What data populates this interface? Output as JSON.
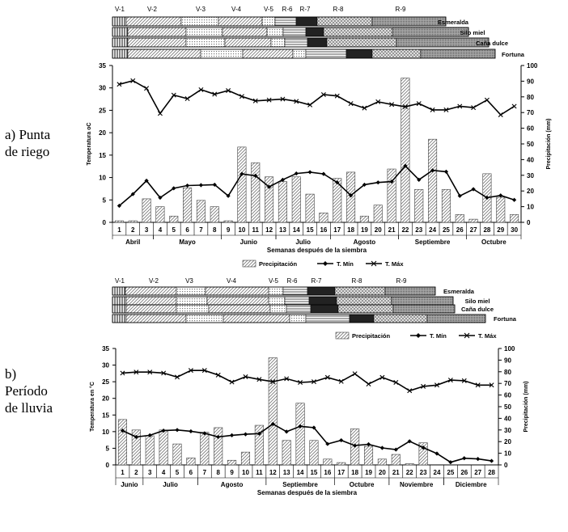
{
  "panel_a_label": "a) Punta\nde riego",
  "panel_b_label": "b)\nPeríodo\nde lluvia",
  "series_names": {
    "precip": "Precipitación",
    "tmin": "T. Mín",
    "tmax": "T. Máx"
  },
  "axis_labels": {
    "y_left_a": "Temperatura oC",
    "y_left_b": "Temperatura en °C",
    "y_right": "Precipitación (mm)",
    "x": "Semanas después de la siembra"
  },
  "stage_bars": [
    {
      "stage_labels": [
        "V-1",
        "V-2",
        "V-3",
        "V-4",
        "V-5",
        "R-6",
        "R-7",
        "R-8",
        "R-9"
      ],
      "varieties": [
        "Esmeralda",
        "Silo miel",
        "Caña dulce",
        "Fortuna"
      ]
    },
    {
      "stage_labels": [
        "V-1",
        "V-2",
        "V3",
        "V-4",
        "V-5",
        "R-6",
        "R-7",
        "R-8",
        "R-9"
      ],
      "varieties": [
        "Esmeralda",
        "Silo miel",
        "Caña dulce",
        "Fortuna"
      ]
    }
  ],
  "chart_data": [
    {
      "type": "bar+line",
      "panel": "a",
      "weeks": [
        1,
        2,
        3,
        4,
        5,
        6,
        7,
        8,
        9,
        10,
        11,
        12,
        13,
        14,
        15,
        16,
        17,
        18,
        19,
        20,
        21,
        22,
        23,
        24,
        25,
        26,
        27,
        28,
        29,
        30
      ],
      "months": [
        {
          "name": "Abril",
          "from": 1,
          "to": 3
        },
        {
          "name": "Mayo",
          "from": 4,
          "to": 8
        },
        {
          "name": "Junio",
          "from": 9,
          "to": 12
        },
        {
          "name": "Julio",
          "from": 13,
          "to": 16
        },
        {
          "name": "Agosto",
          "from": 17,
          "to": 21
        },
        {
          "name": "Septiembre",
          "from": 22,
          "to": 26
        },
        {
          "name": "Octubre",
          "from": 27,
          "to": 30
        }
      ],
      "y_left": {
        "label": "Temperatura oC",
        "range": [
          0,
          35
        ],
        "ticks": [
          0,
          5,
          10,
          15,
          20,
          25,
          30,
          35
        ]
      },
      "y_right": {
        "label": "Precipitación (mm)",
        "range": [
          0,
          100
        ],
        "ticks": [
          0,
          10,
          20,
          30,
          40,
          50,
          60,
          70,
          80,
          90,
          100
        ]
      },
      "xlabel": "Semanas después de la siembra",
      "series": [
        {
          "name": "Precipitación",
          "axis": "right",
          "kind": "bar",
          "values": [
            1,
            1,
            15,
            10,
            4,
            22,
            14,
            10,
            1,
            48,
            38,
            29,
            26,
            29,
            18,
            6,
            28,
            32,
            4,
            11,
            34,
            92,
            21,
            53,
            21,
            5,
            2,
            31,
            16,
            5
          ]
        },
        {
          "name": "T. Mín",
          "axis": "left",
          "kind": "line",
          "marker": "diamond",
          "values": [
            3.7,
            6.3,
            9.3,
            5.5,
            7.6,
            8.2,
            8.3,
            8.4,
            5.9,
            10.8,
            10.4,
            7.9,
            9.5,
            10.9,
            11.2,
            10.8,
            8.9,
            6.0,
            8.4,
            8.9,
            9.1,
            12.6,
            9.5,
            11.6,
            11.3,
            5.9,
            7.4,
            5.5,
            6.0,
            5.0
          ]
        },
        {
          "name": "T. Máx",
          "axis": "left",
          "kind": "line",
          "marker": "x",
          "values": [
            30.8,
            31.6,
            29.9,
            24.3,
            28.4,
            27.6,
            29.6,
            28.6,
            29.4,
            28.1,
            27.1,
            27.3,
            27.5,
            27.0,
            26.2,
            28.5,
            28.2,
            26.5,
            25.5,
            26.9,
            26.3,
            25.8,
            26.5,
            25.1,
            25.1,
            25.9,
            25.6,
            27.3,
            24.0,
            25.9
          ]
        }
      ]
    },
    {
      "type": "bar+line",
      "panel": "b",
      "weeks": [
        1,
        2,
        3,
        4,
        5,
        6,
        7,
        8,
        9,
        10,
        11,
        12,
        13,
        14,
        15,
        16,
        17,
        18,
        19,
        20,
        21,
        22,
        23,
        24,
        25,
        26,
        27,
        28
      ],
      "months": [
        {
          "name": "Junio",
          "from": 1,
          "to": 2
        },
        {
          "name": "Julio",
          "from": 3,
          "to": 6
        },
        {
          "name": "Agosto",
          "from": 7,
          "to": 11
        },
        {
          "name": "Septiembre",
          "from": 12,
          "to": 16
        },
        {
          "name": "Octubre",
          "from": 17,
          "to": 20
        },
        {
          "name": "Noviembre",
          "from": 21,
          "to": 24
        },
        {
          "name": "Diciembre",
          "from": 25,
          "to": 28
        }
      ],
      "y_left": {
        "label": "Temperatura en °C",
        "range": [
          0,
          35
        ],
        "ticks": [
          0,
          5,
          10,
          15,
          20,
          25,
          30,
          35
        ]
      },
      "y_right": {
        "label": "Precipitación (mm)",
        "range": [
          0,
          100
        ],
        "ticks": [
          0,
          10,
          20,
          30,
          40,
          50,
          60,
          70,
          80,
          90,
          100
        ]
      },
      "xlabel": "Semanas después de la siembra",
      "series": [
        {
          "name": "Precipitación",
          "axis": "right",
          "kind": "bar",
          "values": [
            39,
            30,
            25,
            30,
            18,
            6,
            28,
            32,
            4,
            11,
            34,
            92,
            21,
            53,
            21,
            5,
            2,
            31,
            16,
            5,
            9,
            1,
            19,
            0,
            0,
            0,
            0,
            0
          ]
        },
        {
          "name": "T. Mín",
          "axis": "left",
          "kind": "line",
          "marker": "diamond",
          "values": [
            10.3,
            8.4,
            8.9,
            10.3,
            10.5,
            10.1,
            9.5,
            8.4,
            8.9,
            9.2,
            9.4,
            12.3,
            10.0,
            11.6,
            11.2,
            6.3,
            7.4,
            5.8,
            6.2,
            5.1,
            4.6,
            7.1,
            5.2,
            3.4,
            0.8,
            2.0,
            1.8,
            1.2
          ]
        },
        {
          "name": "T. Máx",
          "axis": "left",
          "kind": "line",
          "marker": "x",
          "values": [
            27.6,
            27.9,
            27.9,
            27.6,
            26.4,
            28.4,
            28.4,
            27.0,
            24.9,
            26.5,
            25.7,
            25.0,
            25.9,
            24.8,
            25.0,
            26.3,
            25.1,
            27.4,
            24.3,
            26.3,
            24.8,
            22.3,
            23.6,
            24.0,
            25.5,
            25.3,
            24.0,
            24.0
          ]
        }
      ]
    }
  ]
}
